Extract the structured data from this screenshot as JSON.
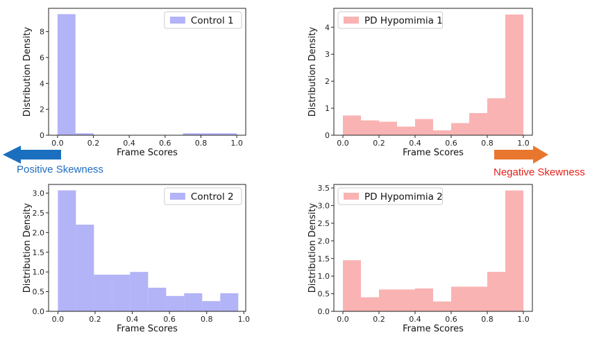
{
  "chart_data": [
    {
      "type": "bar",
      "subtype": "histogram",
      "xlabel": "Frame Scores",
      "ylabel": "Distribution Density",
      "xlim": [
        -0.05,
        1.05
      ],
      "ylim": [
        0,
        9.8
      ],
      "xticks": [
        "0.0",
        "0.2",
        "0.4",
        "0.6",
        "0.8",
        "1.0"
      ],
      "yticks": [
        "0",
        "2",
        "4",
        "6",
        "8"
      ],
      "bins": [
        {
          "x0": 0.0,
          "x1": 0.1,
          "value": 9.35
        },
        {
          "x0": 0.1,
          "x1": 0.2,
          "value": 0.15
        },
        {
          "x0": 0.7,
          "x1": 0.8,
          "value": 0.15
        },
        {
          "x0": 0.8,
          "x1": 0.9,
          "value": 0.15
        },
        {
          "x0": 0.9,
          "x1": 1.0,
          "value": 0.15
        }
      ],
      "series": [
        {
          "name": "Control 1"
        }
      ],
      "legend": "top-right",
      "color": "#b3b3f7"
    },
    {
      "type": "bar",
      "subtype": "histogram",
      "xlabel": "Frame Scores",
      "ylabel": "Distribution Density",
      "xlim": [
        -0.05,
        1.05
      ],
      "ylim": [
        0,
        4.7
      ],
      "xticks": [
        "0.0",
        "0.2",
        "0.4",
        "0.6",
        "0.8",
        "1.0"
      ],
      "yticks": [
        "0",
        "1",
        "2",
        "3",
        "4"
      ],
      "bins": [
        {
          "x0": 0.0,
          "x1": 0.1,
          "value": 0.73
        },
        {
          "x0": 0.1,
          "x1": 0.2,
          "value": 0.55
        },
        {
          "x0": 0.2,
          "x1": 0.3,
          "value": 0.5
        },
        {
          "x0": 0.3,
          "x1": 0.4,
          "value": 0.32
        },
        {
          "x0": 0.4,
          "x1": 0.5,
          "value": 0.6
        },
        {
          "x0": 0.5,
          "x1": 0.6,
          "value": 0.18
        },
        {
          "x0": 0.6,
          "x1": 0.7,
          "value": 0.45
        },
        {
          "x0": 0.7,
          "x1": 0.8,
          "value": 0.82
        },
        {
          "x0": 0.8,
          "x1": 0.9,
          "value": 1.37
        },
        {
          "x0": 0.9,
          "x1": 1.0,
          "value": 4.47
        }
      ],
      "series": [
        {
          "name": "PD Hypomimia 1"
        }
      ],
      "legend": "top-left",
      "color": "#f9b3b3"
    },
    {
      "type": "bar",
      "subtype": "histogram",
      "xlabel": "Frame Scores",
      "ylabel": "Distribution Density",
      "xlim": [
        -0.05,
        1.01
      ],
      "ylim": [
        0,
        3.22
      ],
      "xticks": [
        "0.0",
        "0.2",
        "0.4",
        "0.6",
        "0.8",
        "1.0"
      ],
      "yticks": [
        "0.0",
        "0.5",
        "1.0",
        "1.5",
        "2.0",
        "2.5",
        "3.0"
      ],
      "bins": [
        {
          "x0": 0.0,
          "x1": 0.097,
          "value": 3.07
        },
        {
          "x0": 0.097,
          "x1": 0.194,
          "value": 2.2
        },
        {
          "x0": 0.194,
          "x1": 0.291,
          "value": 0.93
        },
        {
          "x0": 0.291,
          "x1": 0.388,
          "value": 0.93
        },
        {
          "x0": 0.388,
          "x1": 0.485,
          "value": 1.0
        },
        {
          "x0": 0.485,
          "x1": 0.582,
          "value": 0.6
        },
        {
          "x0": 0.582,
          "x1": 0.679,
          "value": 0.39
        },
        {
          "x0": 0.679,
          "x1": 0.776,
          "value": 0.46
        },
        {
          "x0": 0.776,
          "x1": 0.873,
          "value": 0.26
        },
        {
          "x0": 0.873,
          "x1": 0.97,
          "value": 0.46
        }
      ],
      "series": [
        {
          "name": "Control 2"
        }
      ],
      "legend": "top-right",
      "color": "#b3b3f7"
    },
    {
      "type": "bar",
      "subtype": "histogram",
      "xlabel": "Frame Scores",
      "ylabel": "Distribution Density",
      "xlim": [
        -0.05,
        1.05
      ],
      "ylim": [
        0,
        3.6
      ],
      "xticks": [
        "0.0",
        "0.2",
        "0.4",
        "0.6",
        "0.8",
        "1.0"
      ],
      "yticks": [
        "0.0",
        "0.5",
        "1.0",
        "1.5",
        "2.0",
        "2.5",
        "3.0",
        "3.5"
      ],
      "bins": [
        {
          "x0": 0.0,
          "x1": 0.1,
          "value": 1.45
        },
        {
          "x0": 0.1,
          "x1": 0.2,
          "value": 0.4
        },
        {
          "x0": 0.2,
          "x1": 0.3,
          "value": 0.62
        },
        {
          "x0": 0.3,
          "x1": 0.4,
          "value": 0.62
        },
        {
          "x0": 0.4,
          "x1": 0.5,
          "value": 0.65
        },
        {
          "x0": 0.5,
          "x1": 0.6,
          "value": 0.28
        },
        {
          "x0": 0.6,
          "x1": 0.7,
          "value": 0.7
        },
        {
          "x0": 0.7,
          "x1": 0.8,
          "value": 0.7
        },
        {
          "x0": 0.8,
          "x1": 0.9,
          "value": 1.12
        },
        {
          "x0": 0.9,
          "x1": 1.0,
          "value": 3.43
        }
      ],
      "series": [
        {
          "name": "PD Hypomimia 2"
        }
      ],
      "legend": "top-left",
      "color": "#f9b3b3"
    }
  ],
  "annotations": {
    "positive_label": "Positive Skewness",
    "positive_color": "#1f6cc0",
    "negative_label": "Negative Skewness",
    "negative_color": "#e0221a",
    "left_arrow_color": "#1a6fbf",
    "right_arrow_color": "#e8762f"
  }
}
